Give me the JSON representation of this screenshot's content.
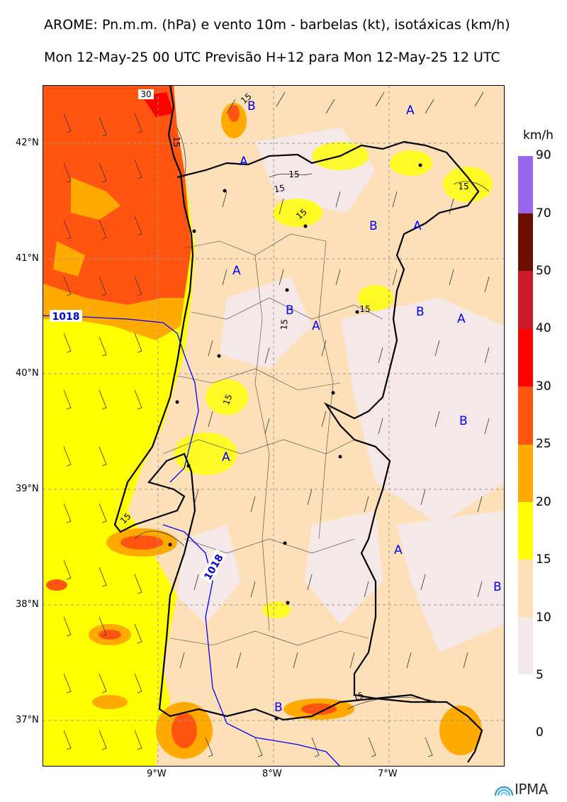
{
  "title_line1": "AROME: Pn.m.m. (hPa) e vento 10m - barbelas (kt), isotáxicas (km/h)",
  "title_line2": "Mon 12-May-25 00 UTC Previsão H+12 para Mon 12-May-25 12 UTC",
  "lat_labels": [
    "42°N",
    "41°N",
    "40°N",
    "39°N",
    "38°N",
    "37°N"
  ],
  "lon_labels": [
    "9°W",
    "8°W",
    "7°W"
  ],
  "legend": {
    "unit": "km/h",
    "levels": [
      "90",
      "70",
      "50",
      "40",
      "30",
      "25",
      "20",
      "15",
      "10",
      "5",
      "0"
    ],
    "colors": [
      "#9966ee",
      "#6b1000",
      "#cc1a2a",
      "#ff0000",
      "#ff5511",
      "#ffaa00",
      "#ffff00",
      "#fde0b8",
      "#f5e8e8"
    ]
  },
  "isobar_labels": [
    "1018",
    "1018"
  ],
  "isotach_labels": [
    "30",
    "15",
    "15",
    "15",
    "15",
    "15",
    "15",
    "15",
    "15",
    "15",
    "15",
    "15"
  ],
  "pressure_centers": [
    "B",
    "A",
    "A",
    "B",
    "A",
    "A",
    "B",
    "B",
    "A",
    "A",
    "B",
    "A",
    "A",
    "B",
    "B"
  ],
  "logo_text": "IPMA"
}
